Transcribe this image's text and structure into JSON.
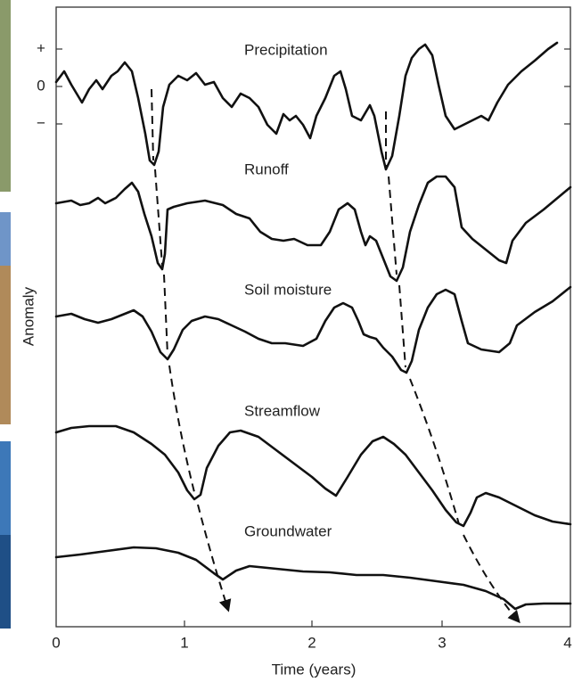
{
  "axes": {
    "y_title": "Anomaly",
    "y_ticks": [
      "+",
      "0",
      "−"
    ],
    "x_title": "Time (years)",
    "x_ticks": [
      "0",
      "1",
      "2",
      "3",
      "4"
    ]
  },
  "curves": [
    {
      "label": "Precipitation"
    },
    {
      "label": "Runoff"
    },
    {
      "label": "Soil moisture"
    },
    {
      "label": "Streamflow"
    },
    {
      "label": "Groundwater"
    }
  ]
}
